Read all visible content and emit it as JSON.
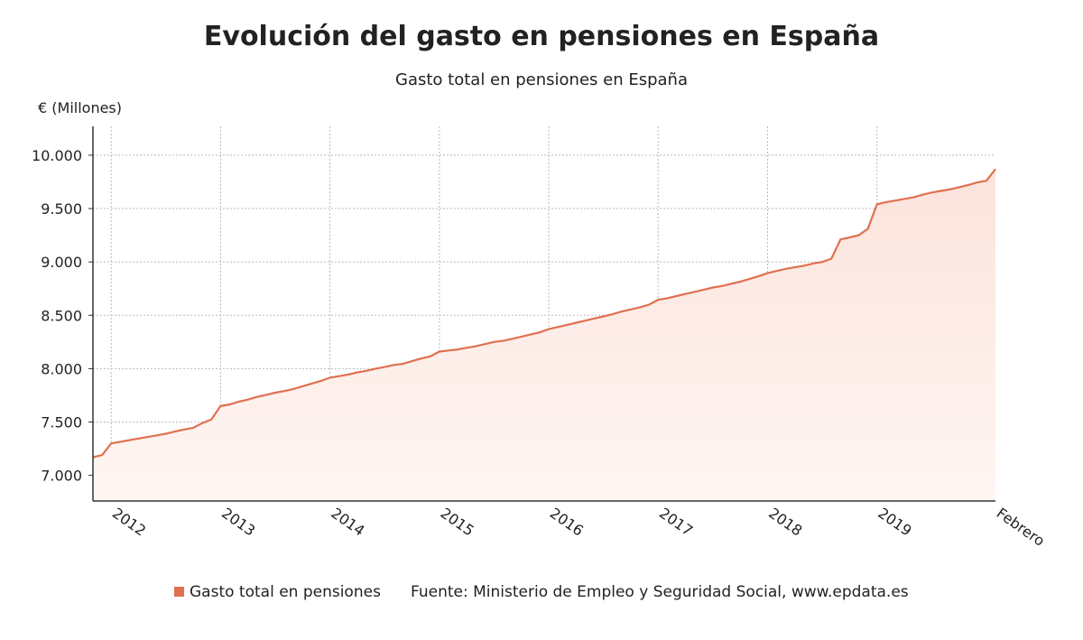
{
  "chart_data": {
    "type": "line",
    "title": "Evolución del gasto en pensiones en España",
    "subtitle": "Gasto total en pensiones en España",
    "y_label": "€ (Millones)",
    "source": "Fuente: Ministerio de Empleo y Seguridad Social, www.epdata.es",
    "categories": [
      null,
      null,
      "2012",
      null,
      null,
      null,
      null,
      null,
      null,
      null,
      null,
      null,
      null,
      null,
      "2013",
      null,
      null,
      null,
      null,
      null,
      null,
      null,
      null,
      null,
      null,
      null,
      "2014",
      null,
      null,
      null,
      null,
      null,
      null,
      null,
      null,
      null,
      null,
      null,
      "2015",
      null,
      null,
      null,
      null,
      null,
      null,
      null,
      null,
      null,
      null,
      null,
      "2016",
      null,
      null,
      null,
      null,
      null,
      null,
      null,
      null,
      null,
      null,
      null,
      "2017",
      null,
      null,
      null,
      null,
      null,
      null,
      null,
      null,
      null,
      null,
      null,
      "2018",
      null,
      null,
      null,
      null,
      null,
      null,
      null,
      null,
      null,
      null,
      null,
      "2019",
      null,
      null,
      null,
      null,
      null,
      null,
      null,
      null,
      null,
      null,
      null,
      null,
      "Febrero"
    ],
    "series": [
      {
        "name": "Gasto total en pensiones",
        "color": "#e07050",
        "values": [
          7170,
          7190,
          7300,
          7315,
          7330,
          7345,
          7360,
          7375,
          7390,
          7410,
          7430,
          7445,
          7490,
          7525,
          7650,
          7665,
          7690,
          7710,
          7735,
          7755,
          7775,
          7790,
          7810,
          7835,
          7860,
          7885,
          7915,
          7930,
          7945,
          7965,
          7980,
          8000,
          8015,
          8035,
          8045,
          8070,
          8095,
          8115,
          8160,
          8170,
          8180,
          8195,
          8210,
          8230,
          8250,
          8260,
          8280,
          8300,
          8320,
          8340,
          8370,
          8390,
          8410,
          8430,
          8450,
          8470,
          8490,
          8510,
          8535,
          8555,
          8575,
          8600,
          8645,
          8660,
          8680,
          8700,
          8720,
          8740,
          8760,
          8775,
          8795,
          8815,
          8840,
          8865,
          8895,
          8915,
          8935,
          8950,
          8965,
          8985,
          9000,
          9030,
          9210,
          9230,
          9250,
          9310,
          9540,
          9560,
          9575,
          9590,
          9605,
          9630,
          9650,
          9665,
          9680,
          9700,
          9720,
          9745,
          9760,
          9870
        ]
      }
    ],
    "ylim": [
      6760,
      10270
    ],
    "yticks": [
      {
        "value": 7000,
        "label": "7.000"
      },
      {
        "value": 7500,
        "label": "7.500"
      },
      {
        "value": 8000,
        "label": "8.000"
      },
      {
        "value": 8500,
        "label": "8.500"
      },
      {
        "value": 9000,
        "label": "9.000"
      },
      {
        "value": 9500,
        "label": "9.500"
      },
      {
        "value": 10000,
        "label": "10.000"
      }
    ],
    "grid": true
  }
}
